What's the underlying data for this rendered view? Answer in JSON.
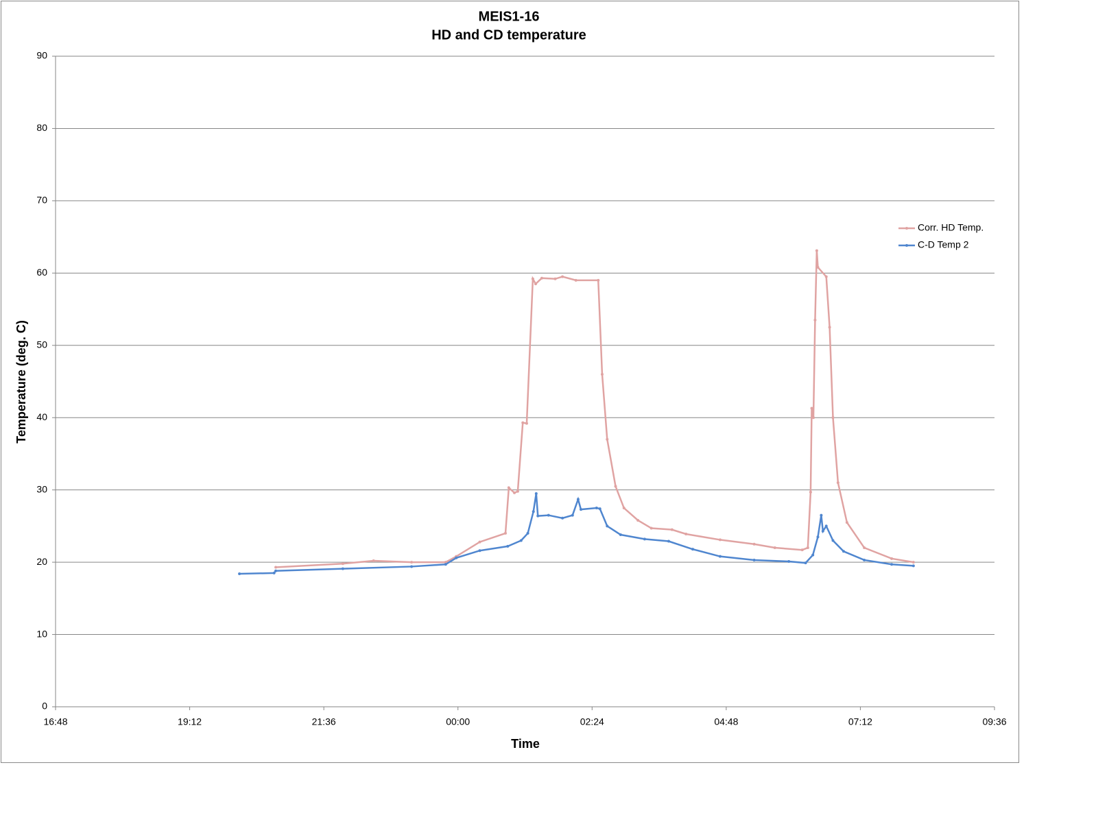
{
  "chart_data": {
    "type": "line",
    "title": "MEIS1-16",
    "subtitle": "HD and CD temperature",
    "x_label": "Time",
    "y_label": "Temperature (deg. C)",
    "xlim": [
      16.8,
      33.6
    ],
    "xticks": [
      {
        "value": 16.8,
        "label": "16:48"
      },
      {
        "value": 19.2,
        "label": "19:12"
      },
      {
        "value": 21.6,
        "label": "21:36"
      },
      {
        "value": 24,
        "label": "00:00"
      },
      {
        "value": 26.4,
        "label": "02:24"
      },
      {
        "value": 28.8,
        "label": "04:48"
      },
      {
        "value": 31.2,
        "label": "07:12"
      },
      {
        "value": 33.6,
        "label": "09:36"
      }
    ],
    "ylim": [
      0,
      90
    ],
    "yticks": [
      0,
      10,
      20,
      30,
      40,
      50,
      60,
      70,
      80,
      90
    ],
    "grid": true,
    "legend": "right",
    "series": [
      {
        "name": "Corr. HD Temp.",
        "color": "#e0a3a2",
        "x": [
          20.74,
          21.94,
          22.49,
          23.17,
          23.78,
          23.97,
          24.39,
          24.85,
          24.91,
          25.01,
          25.07,
          25.16,
          25.23,
          25.34,
          25.39,
          25.5,
          25.74,
          25.87,
          26.11,
          26.51,
          26.58,
          26.67,
          26.82,
          26.97,
          27.22,
          27.46,
          27.83,
          28.08,
          28.69,
          29.3,
          29.67,
          30.16,
          30.26,
          30.31,
          30.33,
          30.36,
          30.39,
          30.42,
          30.44,
          30.59,
          30.65,
          30.71,
          30.8,
          30.96,
          31.27,
          31.76,
          32.15
        ],
        "values": [
          19.3,
          19.8,
          20.2,
          20.0,
          20.0,
          20.8,
          22.8,
          24.0,
          30.3,
          29.6,
          29.8,
          39.3,
          39.2,
          59.2,
          58.5,
          59.3,
          59.2,
          59.5,
          59.0,
          59.0,
          46.0,
          37.0,
          30.5,
          27.5,
          25.8,
          24.7,
          24.5,
          23.9,
          23.1,
          22.5,
          22.0,
          21.7,
          22.0,
          29.7,
          41.3,
          40.0,
          53.5,
          63.1,
          60.8,
          59.5,
          52.5,
          40.0,
          31.0,
          25.5,
          22.0,
          20.5,
          20.0
        ]
      },
      {
        "name": "C-D Temp 2",
        "color": "#4f86cf",
        "x": [
          20.09,
          20.71,
          20.74,
          21.94,
          23.17,
          23.78,
          23.97,
          24.39,
          24.89,
          25.13,
          25.25,
          25.35,
          25.4,
          25.43,
          25.62,
          25.87,
          26.05,
          26.15,
          26.2,
          26.48,
          26.54,
          26.67,
          26.91,
          27.34,
          27.77,
          28.2,
          28.69,
          29.3,
          29.92,
          30.22,
          30.35,
          30.44,
          30.5,
          30.53,
          30.59,
          30.71,
          30.9,
          31.27,
          31.76,
          32.15
        ],
        "values": [
          18.4,
          18.5,
          18.8,
          19.1,
          19.4,
          19.7,
          20.6,
          21.6,
          22.2,
          23.0,
          24.0,
          27.0,
          29.5,
          26.4,
          26.5,
          26.1,
          26.5,
          28.7,
          27.3,
          27.5,
          27.4,
          25.0,
          23.8,
          23.2,
          22.9,
          21.8,
          20.8,
          20.3,
          20.1,
          19.9,
          21.0,
          23.5,
          26.5,
          24.3,
          25.0,
          23.0,
          21.5,
          20.3,
          19.7,
          19.5
        ]
      }
    ]
  }
}
